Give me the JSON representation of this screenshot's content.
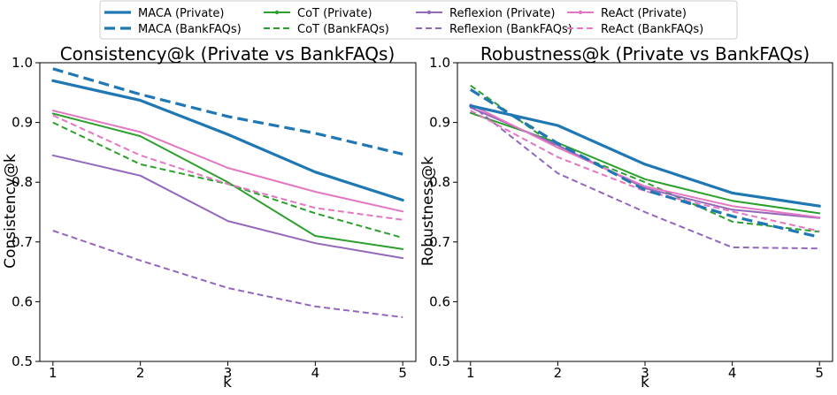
{
  "legend": [
    {
      "label": "MACA (Private)",
      "color": "#1f77b4",
      "dash": "solid",
      "width": 3.2
    },
    {
      "label": "CoT (Private)",
      "color": "#2ca02c",
      "dash": "solid",
      "width": 2
    },
    {
      "label": "Reflexion (Private)",
      "color": "#9467bd",
      "dash": "solid",
      "width": 2
    },
    {
      "label": "ReAct (Private)",
      "color": "#e377c2",
      "dash": "solid",
      "width": 2
    },
    {
      "label": "MACA (BankFAQs)",
      "color": "#1f77b4",
      "dash": "dashed",
      "width": 3.2
    },
    {
      "label": "CoT (BankFAQs)",
      "color": "#2ca02c",
      "dash": "dashed",
      "width": 2
    },
    {
      "label": "Reflexion (BankFAQs)",
      "color": "#9467bd",
      "dash": "dashed",
      "width": 2
    },
    {
      "label": "ReAct (BankFAQs)",
      "color": "#e377c2",
      "dash": "dashed",
      "width": 2
    }
  ],
  "chart_data": [
    {
      "type": "line",
      "title": "Consistency@k (Private vs BankFAQs)",
      "xlabel": "k",
      "ylabel": "Consistency@k",
      "x": [
        1,
        2,
        3,
        4,
        5
      ],
      "xticks": [
        "1",
        "2",
        "3",
        "4",
        "5"
      ],
      "yticks": [
        "0.5",
        "0.6",
        "0.7",
        "0.8",
        "0.9",
        "1.0"
      ],
      "xlim": [
        0.85,
        5.15
      ],
      "ylim": [
        0.5,
        1.0
      ],
      "series": [
        {
          "name": "MACA (Private)",
          "values": [
            0.97,
            0.937,
            0.88,
            0.817,
            0.77
          ]
        },
        {
          "name": "MACA (BankFAQs)",
          "values": [
            0.99,
            0.947,
            0.91,
            0.882,
            0.847
          ]
        },
        {
          "name": "CoT (Private)",
          "values": [
            0.915,
            0.877,
            0.8,
            0.71,
            0.688
          ]
        },
        {
          "name": "CoT (BankFAQs)",
          "values": [
            0.9,
            0.83,
            0.797,
            0.748,
            0.707
          ]
        },
        {
          "name": "Reflexion (Private)",
          "values": [
            0.845,
            0.811,
            0.735,
            0.698,
            0.673
          ]
        },
        {
          "name": "Reflexion (BankFAQs)",
          "values": [
            0.719,
            0.669,
            0.623,
            0.592,
            0.574
          ]
        },
        {
          "name": "ReAct (Private)",
          "values": [
            0.92,
            0.884,
            0.824,
            0.784,
            0.751
          ]
        },
        {
          "name": "ReAct (BankFAQs)",
          "values": [
            0.912,
            0.845,
            0.797,
            0.757,
            0.737
          ]
        }
      ]
    },
    {
      "type": "line",
      "title": "Robustness@k (Private vs BankFAQs)",
      "xlabel": "k",
      "ylabel": "Robustness@k",
      "x": [
        1,
        2,
        3,
        4,
        5
      ],
      "xticks": [
        "1",
        "2",
        "3",
        "4",
        "5"
      ],
      "yticks": [
        "0.5",
        "0.6",
        "0.7",
        "0.8",
        "0.9",
        "1.0"
      ],
      "xlim": [
        0.85,
        5.15
      ],
      "ylim": [
        0.5,
        1.0
      ],
      "series": [
        {
          "name": "MACA (Private)",
          "values": [
            0.928,
            0.895,
            0.83,
            0.782,
            0.76
          ]
        },
        {
          "name": "MACA (BankFAQs)",
          "values": [
            0.955,
            0.865,
            0.787,
            0.743,
            0.708
          ]
        },
        {
          "name": "CoT (Private)",
          "values": [
            0.916,
            0.866,
            0.805,
            0.769,
            0.748
          ]
        },
        {
          "name": "CoT (BankFAQs)",
          "values": [
            0.962,
            0.858,
            0.8,
            0.734,
            0.717
          ]
        },
        {
          "name": "Reflexion (Private)",
          "values": [
            0.925,
            0.862,
            0.79,
            0.754,
            0.74
          ]
        },
        {
          "name": "Reflexion (BankFAQs)",
          "values": [
            0.93,
            0.815,
            0.75,
            0.691,
            0.689
          ]
        },
        {
          "name": "ReAct (Private)",
          "values": [
            0.93,
            0.858,
            0.793,
            0.76,
            0.741
          ]
        },
        {
          "name": "ReAct (BankFAQs)",
          "values": [
            0.92,
            0.842,
            0.785,
            0.751,
            0.718
          ]
        }
      ]
    }
  ]
}
